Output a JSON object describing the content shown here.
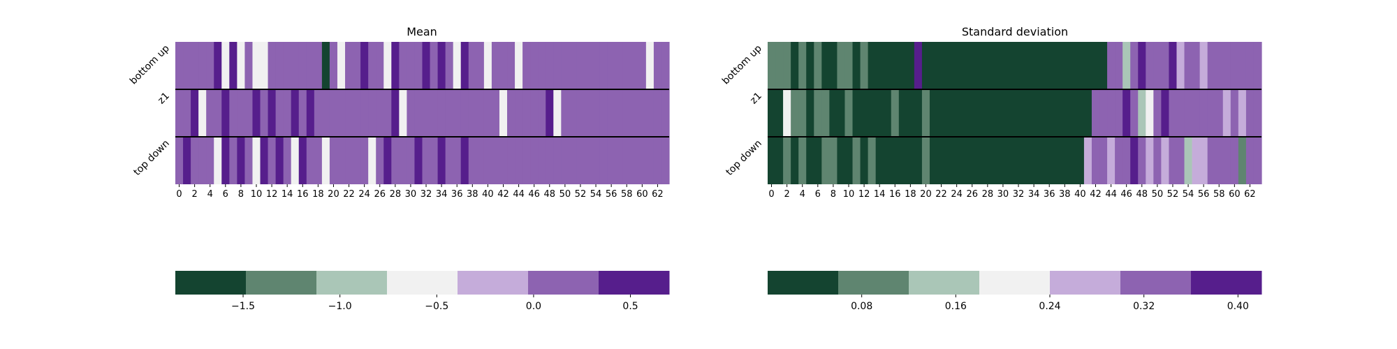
{
  "chart_data": [
    {
      "type": "heatmap",
      "title": "Mean",
      "rows": [
        "bottom up",
        "z1",
        "top down"
      ],
      "x_tick_labels": [
        "0",
        "2",
        "4",
        "6",
        "8",
        "10",
        "12",
        "14",
        "16",
        "18",
        "20",
        "22",
        "24",
        "26",
        "28",
        "30",
        "32",
        "34",
        "36",
        "38",
        "40",
        "42",
        "44",
        "46",
        "48",
        "50",
        "52",
        "54",
        "56",
        "58",
        "60",
        "62"
      ],
      "n_columns": 64,
      "matrix": [
        [
          0.0,
          0.3,
          0.3,
          0.3,
          0.3,
          0.6,
          -0.5,
          0.6,
          -0.5,
          0.0,
          -0.5,
          -0.5,
          0.3,
          0.0,
          0.3,
          0.3,
          0.0,
          0.0,
          0.0,
          -1.5,
          0.3,
          -0.5,
          0.0,
          0.0,
          0.6,
          0.0,
          0.3,
          -0.5,
          0.6,
          0.3,
          0.0,
          0.0,
          0.6,
          0.0,
          0.6,
          0.0,
          -0.5,
          0.6,
          0.3,
          0.0,
          -0.5,
          0.0,
          0.3,
          0.3,
          -0.5,
          0.0,
          0.3,
          0.0,
          0.0,
          0.0,
          0.3,
          0.3,
          0.3,
          0.3,
          0.3,
          0.3,
          0.3,
          0.3,
          0.0,
          0.3,
          0.3,
          -0.5,
          0.3,
          0.0
        ],
        [
          0.3,
          0.3,
          0.6,
          -0.5,
          0.0,
          0.3,
          0.6,
          0.3,
          0.3,
          0.3,
          0.6,
          0.3,
          0.6,
          0.0,
          0.3,
          0.6,
          0.0,
          0.6,
          0.0,
          0.0,
          0.0,
          0.3,
          0.3,
          0.0,
          0.3,
          0.3,
          0.3,
          0.3,
          0.6,
          -0.5,
          0.3,
          0.0,
          0.0,
          0.3,
          0.0,
          0.3,
          0.3,
          0.3,
          0.0,
          0.3,
          0.3,
          0.3,
          -0.5,
          0.3,
          0.0,
          0.0,
          0.0,
          0.3,
          0.6,
          -0.5,
          0.0,
          0.3,
          0.3,
          0.3,
          0.3,
          0.0,
          0.3,
          0.3,
          0.3,
          0.0,
          0.0,
          0.0,
          0.0,
          0.3
        ],
        [
          0.3,
          0.6,
          0.0,
          0.3,
          0.3,
          -0.5,
          0.6,
          0.0,
          0.6,
          0.3,
          -0.5,
          0.6,
          0.3,
          0.6,
          0.3,
          -0.5,
          0.6,
          0.3,
          0.0,
          -0.5,
          0.0,
          0.3,
          0.3,
          0.3,
          0.3,
          -0.5,
          0.0,
          0.6,
          0.3,
          0.0,
          0.3,
          0.6,
          0.0,
          0.3,
          0.6,
          0.3,
          0.0,
          0.6,
          0.0,
          0.3,
          0.0,
          0.3,
          0.0,
          0.3,
          0.3,
          0.3,
          0.3,
          0.0,
          0.0,
          0.0,
          0.0,
          0.3,
          0.0,
          0.3,
          0.3,
          0.3,
          0.0,
          0.0,
          0.0,
          0.3,
          0.0,
          0.3,
          0.3,
          0.3
        ]
      ],
      "colorbar": {
        "label_values": [
          -1.5,
          -1.0,
          -0.5,
          0.0,
          0.5
        ],
        "tick_labels": [
          "−1.5",
          "−1.0",
          "−0.5",
          "0.0",
          "0.5"
        ],
        "range": [
          -1.85,
          0.7
        ],
        "colors": [
          "#144430",
          "#5f8570",
          "#aac6b7",
          "#f1f1f1",
          "#c5acda",
          "#8d63b1",
          "#561e8c"
        ]
      }
    },
    {
      "type": "heatmap",
      "title": "Standard deviation",
      "rows": [
        "bottom up",
        "z1",
        "top down"
      ],
      "x_tick_labels": [
        "0",
        "2",
        "4",
        "6",
        "8",
        "10",
        "12",
        "14",
        "16",
        "18",
        "20",
        "22",
        "24",
        "26",
        "28",
        "30",
        "32",
        "34",
        "36",
        "38",
        "40",
        "42",
        "44",
        "46",
        "48",
        "50",
        "52",
        "54",
        "56",
        "58",
        "60",
        "62"
      ],
      "n_columns": 64,
      "matrix": [
        [
          0.06,
          0.06,
          0.06,
          0.02,
          0.06,
          0.02,
          0.06,
          0.02,
          0.02,
          0.06,
          0.06,
          0.02,
          0.06,
          0.02,
          0.02,
          0.02,
          0.02,
          0.02,
          0.02,
          0.4,
          0.02,
          0.02,
          0.02,
          0.02,
          0.02,
          0.02,
          0.02,
          0.02,
          0.02,
          0.02,
          0.02,
          0.02,
          0.02,
          0.02,
          0.02,
          0.02,
          0.02,
          0.02,
          0.02,
          0.02,
          0.02,
          0.02,
          0.02,
          0.02,
          0.32,
          0.32,
          0.14,
          0.32,
          0.4,
          0.32,
          0.32,
          0.32,
          0.4,
          0.26,
          0.32,
          0.32,
          0.26,
          0.32,
          0.32,
          0.32,
          0.32,
          0.32,
          0.32,
          0.32
        ],
        [
          0.02,
          0.02,
          0.2,
          0.06,
          0.06,
          0.02,
          0.06,
          0.06,
          0.02,
          0.02,
          0.06,
          0.02,
          0.02,
          0.02,
          0.02,
          0.02,
          0.06,
          0.02,
          0.02,
          0.02,
          0.06,
          0.02,
          0.02,
          0.02,
          0.02,
          0.02,
          0.02,
          0.02,
          0.02,
          0.02,
          0.02,
          0.02,
          0.02,
          0.02,
          0.02,
          0.02,
          0.02,
          0.02,
          0.02,
          0.02,
          0.02,
          0.02,
          0.32,
          0.32,
          0.32,
          0.32,
          0.4,
          0.32,
          0.14,
          0.22,
          0.32,
          0.4,
          0.32,
          0.32,
          0.32,
          0.32,
          0.32,
          0.32,
          0.32,
          0.26,
          0.32,
          0.26,
          0.32,
          0.32
        ],
        [
          0.02,
          0.02,
          0.06,
          0.02,
          0.06,
          0.02,
          0.02,
          0.06,
          0.06,
          0.02,
          0.02,
          0.06,
          0.02,
          0.06,
          0.02,
          0.02,
          0.02,
          0.02,
          0.02,
          0.02,
          0.06,
          0.02,
          0.02,
          0.02,
          0.02,
          0.02,
          0.02,
          0.02,
          0.02,
          0.02,
          0.02,
          0.02,
          0.02,
          0.02,
          0.02,
          0.02,
          0.02,
          0.02,
          0.02,
          0.02,
          0.02,
          0.26,
          0.32,
          0.32,
          0.26,
          0.32,
          0.32,
          0.4,
          0.32,
          0.26,
          0.32,
          0.26,
          0.32,
          0.32,
          0.14,
          0.26,
          0.26,
          0.32,
          0.32,
          0.32,
          0.32,
          0.06,
          0.32,
          0.32
        ]
      ],
      "colorbar": {
        "label_values": [
          0.08,
          0.16,
          0.24,
          0.32,
          0.4
        ],
        "tick_labels": [
          "0.08",
          "0.16",
          "0.24",
          "0.32",
          "0.40"
        ],
        "range": [
          0.0,
          0.42
        ],
        "colors": [
          "#144430",
          "#5f8570",
          "#aac6b7",
          "#f1f1f1",
          "#c5acda",
          "#8d63b1",
          "#561e8c"
        ]
      }
    }
  ]
}
